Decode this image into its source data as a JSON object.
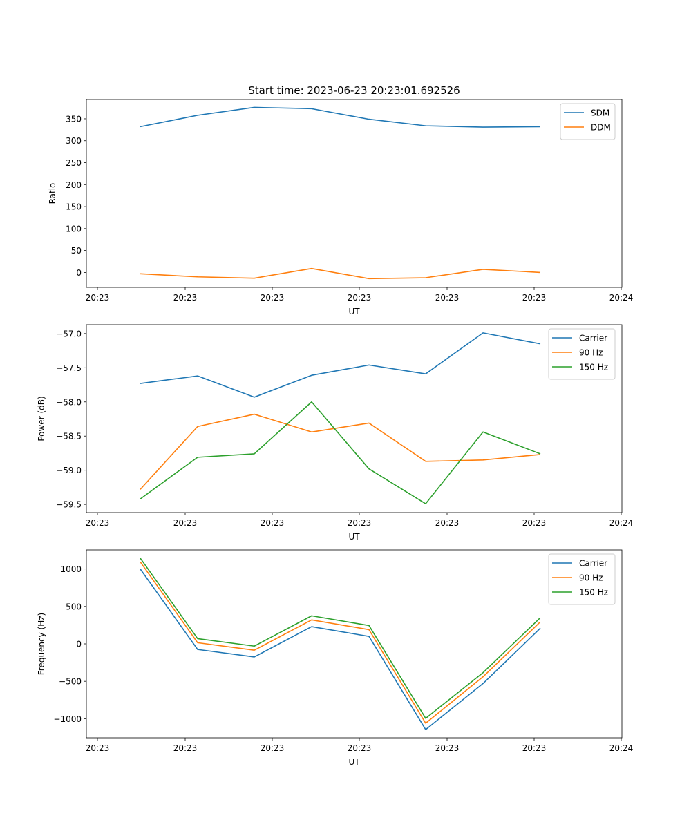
{
  "figure_title": "Start time: 2023-06-23 20:23:01.692526",
  "colors": {
    "blue": "#1f77b4",
    "orange": "#ff7f0e",
    "green": "#2ca02c"
  },
  "chart_data": [
    {
      "type": "line",
      "title": "Start time: 2023-06-23 20:23:01.692526",
      "xlabel": "UT",
      "ylabel": "Ratio",
      "x_tick_labels": [
        "20:23",
        "20:23",
        "20:23",
        "20:23",
        "20:23",
        "20:23",
        "20:24"
      ],
      "y_ticks": [
        0,
        50,
        100,
        150,
        200,
        250,
        300,
        350
      ],
      "y_tick_labels": [
        "0",
        "50",
        "100",
        "150",
        "200",
        "250",
        "300",
        "350"
      ],
      "ylim": [
        -34,
        394
      ],
      "legend_position": "upper right",
      "grid": false,
      "series": [
        {
          "name": "SDM",
          "color": "#1f77b4",
          "values": [
            332,
            358,
            376,
            373,
            349,
            334,
            331,
            332
          ]
        },
        {
          "name": "DDM",
          "color": "#ff7f0e",
          "values": [
            -3,
            -10,
            -13,
            9,
            -14,
            -12,
            7,
            0
          ]
        }
      ]
    },
    {
      "type": "line",
      "title": "",
      "xlabel": "UT",
      "ylabel": "Power (dB)",
      "x_tick_labels": [
        "20:23",
        "20:23",
        "20:23",
        "20:23",
        "20:23",
        "20:23",
        "20:24"
      ],
      "y_ticks": [
        -59.5,
        -59.0,
        -58.5,
        -58.0,
        -57.5,
        -57.0
      ],
      "y_tick_labels": [
        "−59.5",
        "−59.0",
        "−58.5",
        "−58.0",
        "−57.5",
        "−57.0"
      ],
      "ylim": [
        -59.62,
        -56.87
      ],
      "legend_position": "upper right",
      "grid": false,
      "series": [
        {
          "name": "Carrier",
          "color": "#1f77b4",
          "values": [
            -57.73,
            -57.62,
            -57.93,
            -57.61,
            -57.46,
            -57.59,
            -56.99,
            -57.15
          ]
        },
        {
          "name": "90 Hz",
          "color": "#ff7f0e",
          "values": [
            -59.28,
            -58.36,
            -58.18,
            -58.44,
            -58.31,
            -58.87,
            -58.85,
            -58.77
          ]
        },
        {
          "name": "150 Hz",
          "color": "#2ca02c",
          "values": [
            -59.42,
            -58.81,
            -58.76,
            -58.0,
            -58.98,
            -59.49,
            -58.44,
            -58.76
          ]
        }
      ]
    },
    {
      "type": "line",
      "title": "",
      "xlabel": "UT",
      "ylabel": "Frequency (Hz)",
      "x_tick_labels": [
        "20:23",
        "20:23",
        "20:23",
        "20:23",
        "20:23",
        "20:23",
        "20:24"
      ],
      "y_ticks": [
        -1000,
        -500,
        0,
        500,
        1000
      ],
      "y_tick_labels": [
        "−1000",
        "−500",
        "0",
        "500",
        "1000"
      ],
      "ylim": [
        -1255,
        1255
      ],
      "legend_position": "upper right",
      "grid": false,
      "series": [
        {
          "name": "Carrier",
          "color": "#1f77b4",
          "values": [
            1000,
            -75,
            -175,
            230,
            100,
            -1145,
            -530,
            210
          ]
        },
        {
          "name": "90 Hz",
          "color": "#ff7f0e",
          "values": [
            1095,
            15,
            -85,
            320,
            190,
            -1060,
            -440,
            295
          ]
        },
        {
          "name": "150 Hz",
          "color": "#2ca02c",
          "values": [
            1145,
            70,
            -30,
            375,
            245,
            -995,
            -385,
            350
          ]
        }
      ]
    }
  ]
}
